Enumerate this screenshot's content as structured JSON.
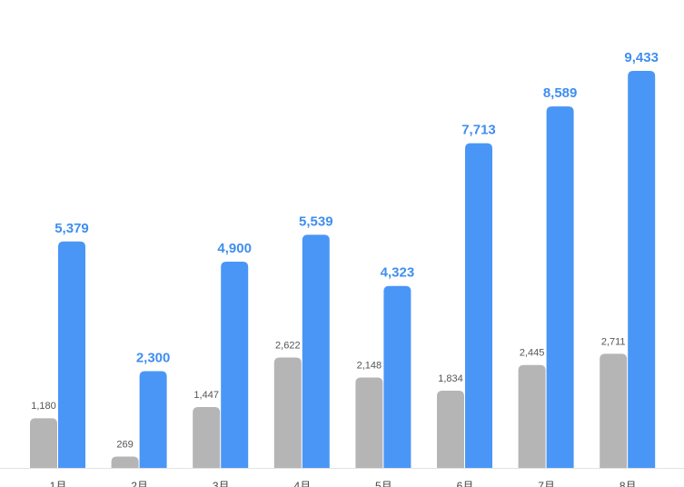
{
  "chart_data": {
    "type": "bar",
    "categories": [
      "1月",
      "2月",
      "3月",
      "4月",
      "5月",
      "6月",
      "7月",
      "8月"
    ],
    "series": [
      {
        "color": "#b5b5b5",
        "values": [
          1180,
          269,
          1447,
          2622,
          2148,
          1834,
          2445,
          2711
        ],
        "value_labels": [
          "1,180",
          "269",
          "1,447",
          "2,622",
          "2,148",
          "1,834",
          "2,445",
          "2,711"
        ]
      },
      {
        "color": "#4a96f6",
        "values": [
          5379,
          2300,
          4900,
          5539,
          4323,
          7713,
          8589,
          9433
        ],
        "value_labels": [
          "5,379",
          "2,300",
          "4,900",
          "5,539",
          "4,323",
          "7,713",
          "8,589",
          "9,433"
        ]
      }
    ]
  }
}
